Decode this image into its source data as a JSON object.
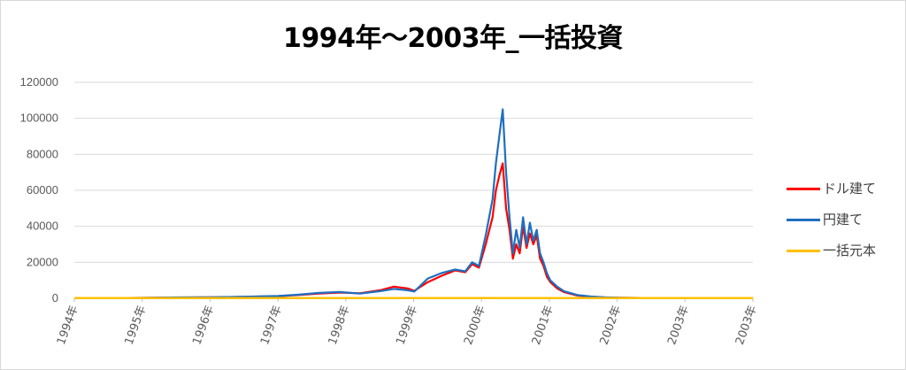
{
  "chart_data": {
    "type": "line",
    "title": "1994年～2003年_一括投資",
    "xlabel": "",
    "ylabel": "",
    "ylim": [
      0,
      120000
    ],
    "yticks": [
      "0",
      "20000",
      "40000",
      "60000",
      "80000",
      "100000",
      "120000"
    ],
    "xlim": [
      1994.0,
      2003.98
    ],
    "xticks": [
      "1994年",
      "1995年",
      "1996年",
      "1997年",
      "1998年",
      "1999年",
      "2000年",
      "2001年",
      "2002年",
      "2003年",
      "2003年"
    ],
    "grid": true,
    "legend_position": "right",
    "series": [
      {
        "name": "ドル建て",
        "color": "#ff0000",
        "x": [
          1994.0,
          1994.5,
          1995.0,
          1995.5,
          1996.0,
          1996.5,
          1997.0,
          1997.3,
          1997.6,
          1997.9,
          1998.2,
          1998.5,
          1998.7,
          1998.9,
          1999.0,
          1999.2,
          1999.4,
          1999.6,
          1999.75,
          1999.85,
          1999.95,
          2000.05,
          2000.15,
          2000.2,
          2000.25,
          2000.3,
          2000.35,
          2000.4,
          2000.45,
          2000.5,
          2000.55,
          2000.6,
          2000.65,
          2000.7,
          2000.75,
          2000.8,
          2000.85,
          2000.9,
          2000.95,
          2001.0,
          2001.1,
          2001.2,
          2001.4,
          2001.6,
          2001.8,
          2002.0,
          2002.5,
          2003.0,
          2003.5,
          2003.98
        ],
        "y": [
          150,
          130,
          250,
          420,
          550,
          800,
          1200,
          1800,
          2600,
          3200,
          2800,
          4500,
          6500,
          5500,
          4200,
          9000,
          12500,
          15500,
          14500,
          19000,
          17000,
          30000,
          45000,
          60000,
          68000,
          75000,
          50000,
          38000,
          22000,
          30000,
          25000,
          40000,
          28000,
          36000,
          30000,
          35000,
          22000,
          18000,
          12000,
          9000,
          5500,
          3500,
          1500,
          900,
          500,
          300,
          150,
          90,
          80,
          70
        ]
      },
      {
        "name": "円建て",
        "color": "#1f6fbf",
        "x": [
          1994.0,
          1994.5,
          1995.0,
          1995.5,
          1996.0,
          1996.5,
          1997.0,
          1997.3,
          1997.6,
          1997.9,
          1998.2,
          1998.5,
          1998.7,
          1998.9,
          1999.0,
          1999.2,
          1999.4,
          1999.6,
          1999.75,
          1999.85,
          1999.95,
          2000.05,
          2000.15,
          2000.2,
          2000.25,
          2000.3,
          2000.35,
          2000.4,
          2000.45,
          2000.5,
          2000.55,
          2000.6,
          2000.65,
          2000.7,
          2000.75,
          2000.8,
          2000.85,
          2000.9,
          2000.95,
          2001.0,
          2001.1,
          2001.2,
          2001.4,
          2001.6,
          2001.8,
          2002.0,
          2002.5,
          2003.0,
          2003.5,
          2003.98
        ],
        "y": [
          120,
          110,
          260,
          500,
          600,
          900,
          1300,
          2000,
          3000,
          3500,
          2600,
          4000,
          5200,
          4500,
          3800,
          11000,
          14000,
          16000,
          15000,
          20000,
          18000,
          35000,
          55000,
          75000,
          90000,
          105000,
          70000,
          45000,
          25000,
          38000,
          28000,
          45000,
          30000,
          42000,
          32000,
          38000,
          25000,
          20000,
          14000,
          10000,
          6500,
          4000,
          1800,
          1000,
          550,
          330,
          170,
          100,
          90,
          80
        ]
      },
      {
        "name": "一括元本",
        "color": "#ffc000",
        "x": [
          1994.0,
          2003.98
        ],
        "y": [
          100,
          100
        ]
      }
    ]
  }
}
